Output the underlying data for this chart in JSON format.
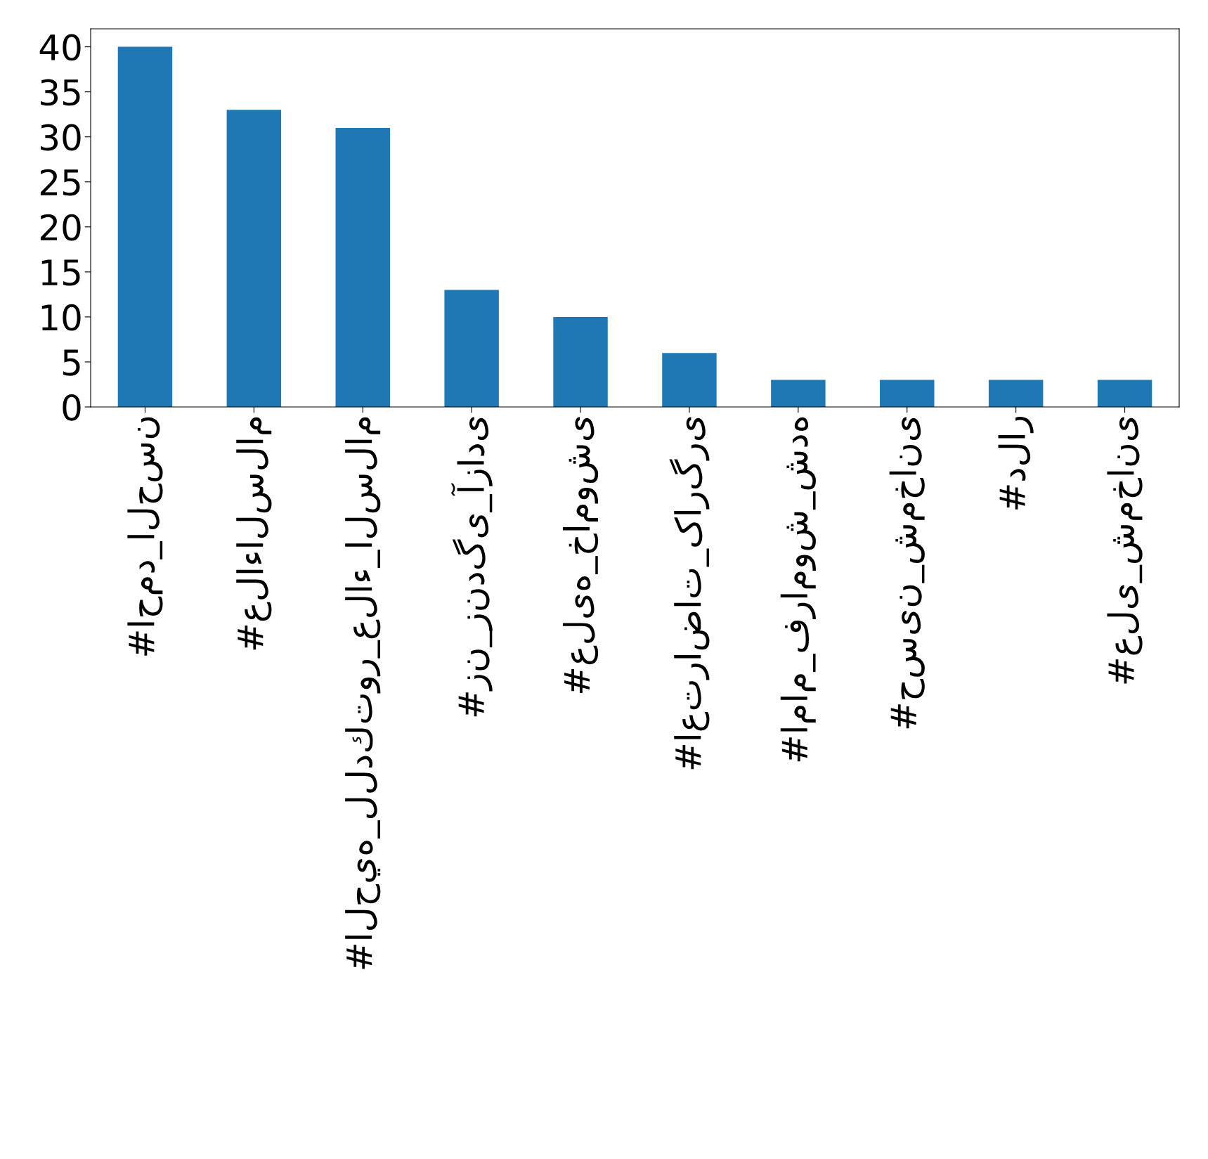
{
  "chart_data": {
    "type": "bar",
    "categories": [
      "#احمد_الحسن",
      "#علاءالسلام",
      "#الحيه_للدكتور_علاء_السلام",
      "#زن_زندگی_آزادی",
      "#علیه_خاموشی",
      "#اعتراضات_کارگری",
      "#امام_فراموش_شده",
      "#حسین_شمخانی",
      "#دلار",
      "#علی_شمخانی"
    ],
    "values": [
      40,
      33,
      31,
      13,
      10,
      6,
      3,
      3,
      3,
      3
    ],
    "color": "#1f77b4",
    "ylim": [
      0,
      42
    ],
    "yticks": [
      0,
      5,
      10,
      15,
      20,
      25,
      30,
      35,
      40
    ],
    "grid": false,
    "legend": false
  }
}
